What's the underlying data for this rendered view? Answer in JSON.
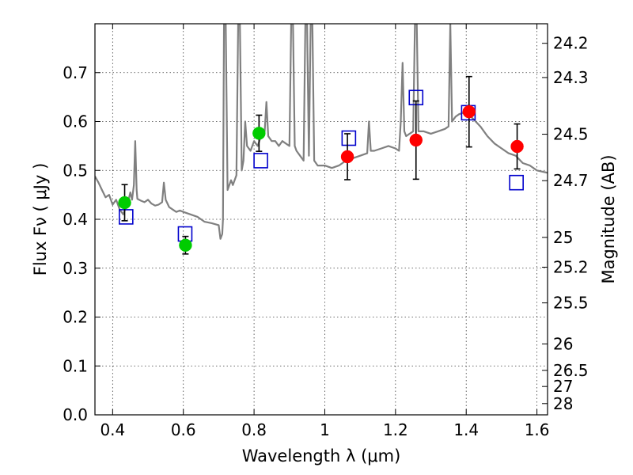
{
  "chart_data": {
    "type": "scatter",
    "title": "",
    "xlabel": "Wavelength  λ (μm)",
    "ylabel": "Flux  Fν  ( μJy )",
    "ylabel_right": "Magnitude (AB)",
    "xlim": [
      0.35,
      1.63
    ],
    "ylim": [
      0.0,
      0.8
    ],
    "grid": true,
    "x_ticks": [
      0.4,
      0.6,
      0.8,
      1.0,
      1.2,
      1.4,
      1.6
    ],
    "x_tick_labels": [
      "0.4",
      "0.6",
      "0.8",
      "1",
      "1.2",
      "1.4",
      "1.6"
    ],
    "y_ticks": [
      0.0,
      0.1,
      0.2,
      0.3,
      0.4,
      0.5,
      0.6,
      0.7
    ],
    "y_tick_labels": [
      "0.0",
      "0.1",
      "0.2",
      "0.3",
      "0.4",
      "0.5",
      "0.6",
      "0.7"
    ],
    "right_ticks": [
      {
        "label": "24.2",
        "flux": 0.76
      },
      {
        "label": "24.3",
        "flux": 0.69
      },
      {
        "label": "24.5",
        "flux": 0.574
      },
      {
        "label": "24.7",
        "flux": 0.479
      },
      {
        "label": "25",
        "flux": 0.363
      },
      {
        "label": "25.2",
        "flux": 0.302
      },
      {
        "label": "25.5",
        "flux": 0.229
      },
      {
        "label": "26",
        "flux": 0.145
      },
      {
        "label": "26.5",
        "flux": 0.091
      },
      {
        "label": "27",
        "flux": 0.058
      },
      {
        "label": "28",
        "flux": 0.023
      }
    ],
    "series": [
      {
        "kind": "model_spectrum",
        "color": "#808080",
        "points": [
          [
            0.35,
            0.488
          ],
          [
            0.36,
            0.475
          ],
          [
            0.37,
            0.46
          ],
          [
            0.38,
            0.445
          ],
          [
            0.39,
            0.45
          ],
          [
            0.4,
            0.43
          ],
          [
            0.41,
            0.44
          ],
          [
            0.42,
            0.42
          ],
          [
            0.43,
            0.41
          ],
          [
            0.44,
            0.43
          ],
          [
            0.445,
            0.44
          ],
          [
            0.45,
            0.455
          ],
          [
            0.455,
            0.44
          ],
          [
            0.46,
            0.47
          ],
          [
            0.464,
            0.56
          ],
          [
            0.468,
            0.46
          ],
          [
            0.47,
            0.442
          ],
          [
            0.48,
            0.438
          ],
          [
            0.49,
            0.435
          ],
          [
            0.5,
            0.44
          ],
          [
            0.51,
            0.432
          ],
          [
            0.52,
            0.428
          ],
          [
            0.53,
            0.43
          ],
          [
            0.54,
            0.435
          ],
          [
            0.545,
            0.475
          ],
          [
            0.55,
            0.44
          ],
          [
            0.56,
            0.425
          ],
          [
            0.57,
            0.42
          ],
          [
            0.58,
            0.415
          ],
          [
            0.59,
            0.418
          ],
          [
            0.6,
            0.415
          ],
          [
            0.62,
            0.41
          ],
          [
            0.64,
            0.405
          ],
          [
            0.66,
            0.395
          ],
          [
            0.68,
            0.392
          ],
          [
            0.7,
            0.388
          ],
          [
            0.705,
            0.36
          ],
          [
            0.71,
            0.37
          ],
          [
            0.712,
            0.4
          ],
          [
            0.715,
            0.8
          ],
          [
            0.72,
            0.8
          ],
          [
            0.725,
            0.46
          ],
          [
            0.73,
            0.47
          ],
          [
            0.735,
            0.48
          ],
          [
            0.74,
            0.47
          ],
          [
            0.75,
            0.49
          ],
          [
            0.755,
            0.8
          ],
          [
            0.76,
            0.8
          ],
          [
            0.765,
            0.5
          ],
          [
            0.77,
            0.52
          ],
          [
            0.775,
            0.6
          ],
          [
            0.78,
            0.55
          ],
          [
            0.79,
            0.54
          ],
          [
            0.8,
            0.56
          ],
          [
            0.81,
            0.55
          ],
          [
            0.815,
            0.56
          ],
          [
            0.82,
            0.57
          ],
          [
            0.83,
            0.58
          ],
          [
            0.835,
            0.64
          ],
          [
            0.84,
            0.57
          ],
          [
            0.85,
            0.56
          ],
          [
            0.86,
            0.56
          ],
          [
            0.87,
            0.55
          ],
          [
            0.88,
            0.56
          ],
          [
            0.89,
            0.555
          ],
          [
            0.9,
            0.55
          ],
          [
            0.905,
            0.8
          ],
          [
            0.91,
            0.8
          ],
          [
            0.915,
            0.55
          ],
          [
            0.92,
            0.54
          ],
          [
            0.93,
            0.53
          ],
          [
            0.94,
            0.52
          ],
          [
            0.945,
            0.8
          ],
          [
            0.95,
            0.8
          ],
          [
            0.955,
            0.53
          ],
          [
            0.96,
            0.8
          ],
          [
            0.965,
            0.8
          ],
          [
            0.97,
            0.52
          ],
          [
            0.98,
            0.51
          ],
          [
            1.0,
            0.51
          ],
          [
            1.02,
            0.505
          ],
          [
            1.04,
            0.51
          ],
          [
            1.06,
            0.52
          ],
          [
            1.08,
            0.525
          ],
          [
            1.1,
            0.53
          ],
          [
            1.12,
            0.535
          ],
          [
            1.125,
            0.6
          ],
          [
            1.13,
            0.54
          ],
          [
            1.14,
            0.54
          ],
          [
            1.16,
            0.545
          ],
          [
            1.18,
            0.55
          ],
          [
            1.2,
            0.545
          ],
          [
            1.21,
            0.54
          ],
          [
            1.215,
            0.6
          ],
          [
            1.22,
            0.72
          ],
          [
            1.225,
            0.58
          ],
          [
            1.23,
            0.57
          ],
          [
            1.24,
            0.575
          ],
          [
            1.25,
            0.58
          ],
          [
            1.255,
            0.8
          ],
          [
            1.26,
            0.8
          ],
          [
            1.265,
            0.58
          ],
          [
            1.28,
            0.58
          ],
          [
            1.3,
            0.575
          ],
          [
            1.32,
            0.58
          ],
          [
            1.34,
            0.585
          ],
          [
            1.35,
            0.59
          ],
          [
            1.355,
            0.8
          ],
          [
            1.36,
            0.6
          ],
          [
            1.37,
            0.61
          ],
          [
            1.38,
            0.615
          ],
          [
            1.4,
            0.62
          ],
          [
            1.42,
            0.605
          ],
          [
            1.44,
            0.59
          ],
          [
            1.46,
            0.57
          ],
          [
            1.48,
            0.555
          ],
          [
            1.5,
            0.545
          ],
          [
            1.52,
            0.535
          ],
          [
            1.54,
            0.53
          ],
          [
            1.56,
            0.515
          ],
          [
            1.58,
            0.51
          ],
          [
            1.6,
            0.5
          ],
          [
            1.63,
            0.495
          ]
        ]
      },
      {
        "kind": "observed_green",
        "color": "#00cc00",
        "points": [
          {
            "x": 0.434,
            "y": 0.434,
            "err": 0.037
          },
          {
            "x": 0.606,
            "y": 0.347,
            "err": 0.018
          },
          {
            "x": 0.814,
            "y": 0.576,
            "err": 0.037
          }
        ]
      },
      {
        "kind": "observed_red",
        "color": "#ff0000",
        "points": [
          {
            "x": 1.064,
            "y": 0.528,
            "err": 0.047
          },
          {
            "x": 1.258,
            "y": 0.562,
            "err": 0.08
          },
          {
            "x": 1.408,
            "y": 0.62,
            "err": 0.072
          },
          {
            "x": 1.544,
            "y": 0.549,
            "err": 0.046
          }
        ]
      },
      {
        "kind": "model_boxes",
        "color": "#0000cc",
        "points": [
          {
            "x": 0.438,
            "y": 0.405
          },
          {
            "x": 0.605,
            "y": 0.37
          },
          {
            "x": 0.819,
            "y": 0.52
          },
          {
            "x": 1.068,
            "y": 0.566
          },
          {
            "x": 1.258,
            "y": 0.649
          },
          {
            "x": 1.406,
            "y": 0.618
          },
          {
            "x": 1.542,
            "y": 0.475
          }
        ]
      }
    ]
  }
}
